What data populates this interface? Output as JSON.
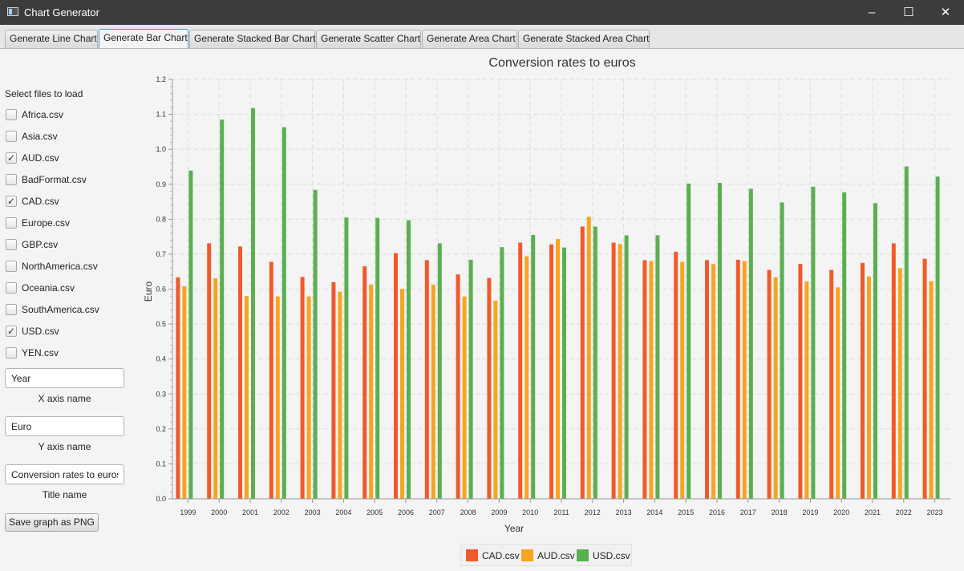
{
  "window": {
    "title": "Chart Generator",
    "icon": "app-window-icon",
    "controls": {
      "minimize": "–",
      "maximize": "☐",
      "close": "✕"
    }
  },
  "tabs": [
    {
      "label": "Generate Line Chart",
      "active": false
    },
    {
      "label": "Generate Bar Chart",
      "active": true
    },
    {
      "label": "Generate Stacked Bar Chart",
      "active": false
    },
    {
      "label": "Generate Scatter Chart",
      "active": false
    },
    {
      "label": "Generate Area Chart",
      "active": false
    },
    {
      "label": "Generate Stacked Area Chart",
      "active": false
    }
  ],
  "sidebar": {
    "select_label": "Select files to load",
    "files": [
      {
        "name": "Africa.csv",
        "checked": false
      },
      {
        "name": "Asia.csv",
        "checked": false
      },
      {
        "name": "AUD.csv",
        "checked": true
      },
      {
        "name": "BadFormat.csv",
        "checked": false
      },
      {
        "name": "CAD.csv",
        "checked": true
      },
      {
        "name": "Europe.csv",
        "checked": false
      },
      {
        "name": "GBP.csv",
        "checked": false
      },
      {
        "name": "NorthAmerica.csv",
        "checked": false
      },
      {
        "name": "Oceania.csv",
        "checked": false
      },
      {
        "name": "SouthAmerica.csv",
        "checked": false
      },
      {
        "name": "USD.csv",
        "checked": true
      },
      {
        "name": "YEN.csv",
        "checked": false
      }
    ],
    "x_axis": {
      "value": "Year",
      "caption": "X axis name"
    },
    "y_axis": {
      "value": "Euro",
      "caption": "Y axis name"
    },
    "title_field": {
      "value": "Conversion rates to euros",
      "caption": "Title name"
    },
    "save_button": "Save graph as PNG"
  },
  "chart_data": {
    "type": "bar",
    "title": "Conversion rates to euros",
    "xlabel": "Year",
    "ylabel": "Euro",
    "ylim": [
      0,
      1.2
    ],
    "ytick_step": 0.1,
    "grid": true,
    "legend_position": "bottom",
    "categories": [
      "1999",
      "2000",
      "2001",
      "2002",
      "2003",
      "2004",
      "2005",
      "2006",
      "2007",
      "2008",
      "2009",
      "2010",
      "2011",
      "2012",
      "2013",
      "2014",
      "2015",
      "2016",
      "2017",
      "2018",
      "2019",
      "2020",
      "2021",
      "2022",
      "2023"
    ],
    "series": [
      {
        "name": "CAD.csv",
        "color": "#f05a2b",
        "values": [
          0.634,
          0.731,
          0.722,
          0.678,
          0.635,
          0.62,
          0.665,
          0.703,
          0.683,
          0.642,
          0.632,
          0.733,
          0.728,
          0.779,
          0.733,
          0.683,
          0.707,
          0.683,
          0.684,
          0.655,
          0.672,
          0.655,
          0.675,
          0.731,
          0.687
        ]
      },
      {
        "name": "AUD.csv",
        "color": "#f8a421",
        "values": [
          0.608,
          0.631,
          0.58,
          0.579,
          0.579,
          0.593,
          0.613,
          0.601,
          0.613,
          0.579,
          0.567,
          0.694,
          0.743,
          0.807,
          0.729,
          0.68,
          0.678,
          0.672,
          0.68,
          0.634,
          0.622,
          0.605,
          0.636,
          0.66,
          0.623
        ]
      },
      {
        "name": "USD.csv",
        "color": "#5aaf50",
        "values": [
          0.939,
          1.085,
          1.118,
          1.063,
          0.884,
          0.805,
          0.804,
          0.797,
          0.731,
          0.684,
          0.72,
          0.755,
          0.719,
          0.779,
          0.754,
          0.754,
          0.902,
          0.904,
          0.887,
          0.848,
          0.893,
          0.877,
          0.846,
          0.951,
          0.922
        ]
      }
    ]
  }
}
